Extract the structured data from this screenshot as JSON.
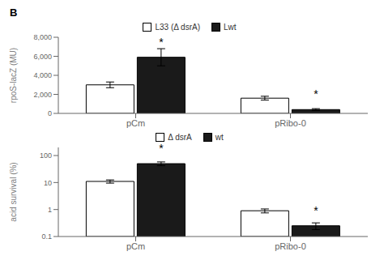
{
  "chart_data": [
    {
      "type": "bar",
      "title": "B",
      "categories": [
        "pCm",
        "pRibo-0"
      ],
      "series": [
        {
          "name": "L33 (Δ dsrA)",
          "color": "white",
          "values": [
            3000,
            1600
          ],
          "errors": [
            300,
            200
          ]
        },
        {
          "name": "Lwt",
          "color": "#1a1a1a",
          "values": [
            5900,
            400
          ],
          "errors": [
            900,
            100
          ]
        }
      ],
      "ylabel": "rpoS-lacZ (MU)",
      "ylim": [
        0,
        8000
      ],
      "yticks": [
        0,
        {
          "value": 2000,
          "label": "2,000"
        },
        {
          "value": 4000,
          "label": "4,000"
        },
        {
          "value": 6000,
          "label": "6,000"
        },
        {
          "value": 8000,
          "label": "8,000"
        }
      ],
      "legend": "top",
      "annotations": [
        {
          "text": "*",
          "category": "pCm",
          "series": "Lwt"
        },
        {
          "text": "*",
          "category": "pRibo-0",
          "series": "Lwt"
        }
      ]
    },
    {
      "type": "bar",
      "categories": [
        "pCm",
        "pRibo-0"
      ],
      "series": [
        {
          "name": "Δ dsrA",
          "color": "white",
          "values": [
            11,
            0.9
          ],
          "errors_low": [
            1.5,
            0.15
          ],
          "errors_high": [
            1.5,
            0.15
          ]
        },
        {
          "name": "wt",
          "color": "#1a1a1a",
          "values": [
            50,
            0.25
          ],
          "errors_low": [
            8,
            0.07
          ],
          "errors_high": [
            8,
            0.07
          ]
        }
      ],
      "ylabel": "acid survival (%)",
      "log": "y",
      "ylim": [
        0.1,
        200
      ],
      "yticks": [
        0.1,
        1,
        10,
        100
      ],
      "legend": "top",
      "annotations": [
        {
          "text": "*",
          "category": "pCm",
          "series": "wt"
        },
        {
          "text": "*",
          "category": "pRibo-0",
          "series": "wt"
        }
      ]
    }
  ]
}
